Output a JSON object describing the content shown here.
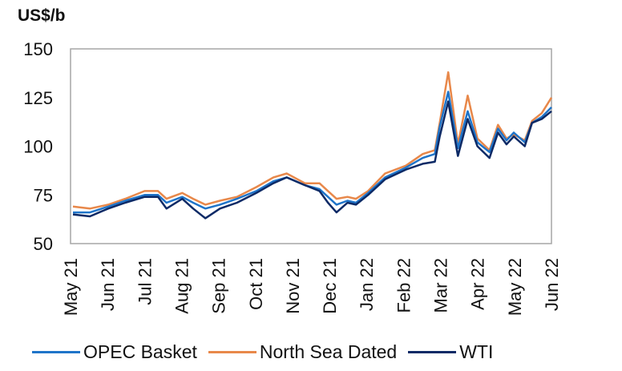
{
  "chart_data": {
    "type": "line",
    "ylabel": "US$/b",
    "ylim": [
      50,
      150
    ],
    "yticks": [
      50,
      75,
      100,
      125,
      150
    ],
    "xlim": [
      "2021-05-01",
      "2022-06-01"
    ],
    "xtick_labels": [
      "May 21",
      "Jun 21",
      "Jul 21",
      "Aug 21",
      "Sep 21",
      "Oct 21",
      "Nov 21",
      "Dec 21",
      "Jan 22",
      "Feb 22",
      "Mar 22",
      "Apr 22",
      "May 22",
      "Jun 22"
    ],
    "grid": false,
    "legend": "bottom",
    "x": [
      "2021-05-03",
      "2021-05-17",
      "2021-06-01",
      "2021-06-15",
      "2021-07-01",
      "2021-07-12",
      "2021-07-19",
      "2021-08-01",
      "2021-08-10",
      "2021-08-20",
      "2021-09-01",
      "2021-09-15",
      "2021-10-01",
      "2021-10-15",
      "2021-10-26",
      "2021-11-10",
      "2021-11-22",
      "2021-11-29",
      "2021-12-06",
      "2021-12-15",
      "2021-12-22",
      "2022-01-01",
      "2022-01-15",
      "2022-02-01",
      "2022-02-15",
      "2022-02-25",
      "2022-03-01",
      "2022-03-08",
      "2022-03-16",
      "2022-03-24",
      "2022-04-01",
      "2022-04-11",
      "2022-04-18",
      "2022-04-25",
      "2022-05-01",
      "2022-05-10",
      "2022-05-16",
      "2022-05-24",
      "2022-06-01"
    ],
    "series": [
      {
        "name": "OPEC Basket",
        "color": "#1f74c9",
        "values": [
          66,
          66,
          69,
          72,
          75,
          75,
          71,
          74,
          71,
          68,
          70,
          73,
          77,
          82,
          84,
          80,
          78,
          74,
          70,
          72,
          71,
          76,
          84,
          89,
          94,
          96,
          110,
          128,
          99,
          118,
          102,
          97,
          109,
          103,
          107,
          102,
          112,
          115,
          120
        ]
      },
      {
        "name": "North Sea Dated",
        "color": "#e8884a",
        "values": [
          69,
          68,
          70,
          73,
          77,
          77,
          73,
          76,
          73,
          70,
          72,
          74,
          79,
          84,
          86,
          81,
          81,
          77,
          73,
          74,
          73,
          77,
          86,
          90,
          96,
          98,
          112,
          138,
          101,
          126,
          104,
          98,
          111,
          104,
          106,
          103,
          113,
          117,
          125
        ]
      },
      {
        "name": "WTI",
        "color": "#0d2a66",
        "values": [
          65,
          64,
          68,
          71,
          74,
          74,
          68,
          73,
          68,
          63,
          68,
          71,
          76,
          81,
          84,
          80,
          77,
          71,
          66,
          71,
          70,
          75,
          83,
          88,
          91,
          92,
          105,
          123,
          95,
          114,
          100,
          94,
          107,
          101,
          105,
          100,
          112,
          114,
          118
        ]
      }
    ]
  }
}
